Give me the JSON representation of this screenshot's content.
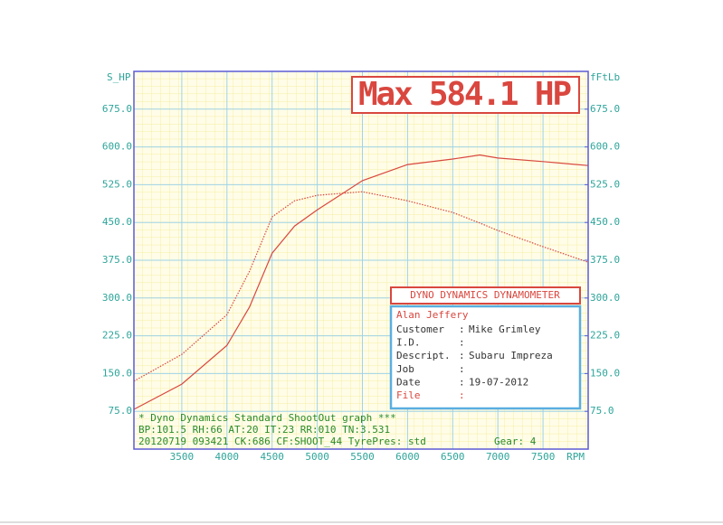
{
  "chart_data": {
    "type": "line",
    "title": "Max 584.1 HP",
    "y_label": "S_HP",
    "y2_label": "fFtLb",
    "x_unit": "RPM",
    "x": [
      2970,
      3500,
      4000,
      4250,
      4500,
      4750,
      5000,
      5500,
      6000,
      6500,
      6800,
      7000,
      7500,
      8000
    ],
    "series": [
      {
        "name": "S_HP",
        "color": "#d9473f",
        "style": "solid",
        "values": [
          79,
          129,
          206,
          282,
          389,
          443,
          475,
          533,
          565,
          576,
          584.1,
          578,
          571,
          563
        ]
      },
      {
        "name": "fFtLb",
        "color": "#d9473f",
        "style": "dotted",
        "axis": "y2",
        "values": [
          135,
          188,
          267,
          353,
          461,
          493,
          504,
          511,
          493,
          470,
          449,
          434,
          402,
          371
        ]
      }
    ],
    "xlim": [
      2970,
      8000
    ],
    "xticks": [
      3500,
      4000,
      4500,
      5000,
      5500,
      6000,
      6500,
      7000,
      7500
    ],
    "ylim": [
      0,
      750
    ],
    "yticks": [
      {
        "value": 75,
        "label": "75.0"
      },
      {
        "value": 150,
        "label": "150.0"
      },
      {
        "value": 225,
        "label": "225.0"
      },
      {
        "value": 300,
        "label": "300.0"
      },
      {
        "value": 375,
        "label": "375.0"
      },
      {
        "value": 450,
        "label": "450.0"
      },
      {
        "value": 525,
        "label": "525.0"
      },
      {
        "value": 600,
        "label": "600.0"
      },
      {
        "value": 675,
        "label": "675.0"
      }
    ],
    "y2lim": [
      0,
      750
    ],
    "y2ticks": [
      {
        "value": 75,
        "label": "75.0"
      },
      {
        "value": 150,
        "label": "150.0"
      },
      {
        "value": 225,
        "label": "225.0"
      },
      {
        "value": 300,
        "label": "300.0"
      },
      {
        "value": 375,
        "label": "375.0"
      },
      {
        "value": 450,
        "label": "450.0"
      },
      {
        "value": 525,
        "label": "525.0"
      },
      {
        "value": 600,
        "label": "600.0"
      },
      {
        "value": 675,
        "label": "675.0"
      }
    ],
    "grid": true,
    "info_box": {
      "title": "DYNO DYNAMICS DYNAMOMETER",
      "operator": "Alan Jeffery",
      "rows": [
        {
          "label": "Customer",
          "value": "Mike Grimley"
        },
        {
          "label": "I.D."
        },
        {
          "label": "Descript.",
          "value": "Subaru Impreza"
        },
        {
          "label": "Job"
        },
        {
          "label": "Date",
          "value": "19-07-2012"
        },
        {
          "label": "File"
        }
      ]
    },
    "footer": {
      "line1": "* Dyno Dynamics Standard ShootOut graph ***",
      "line2": "BP:101.5 RH:66 AT:20 IT:23   RR:010 TN:3.531",
      "line3": "20120719 093421 CK:686 CF:SHOOT_44 TyrePres: std",
      "gear": "Gear: 4"
    }
  }
}
